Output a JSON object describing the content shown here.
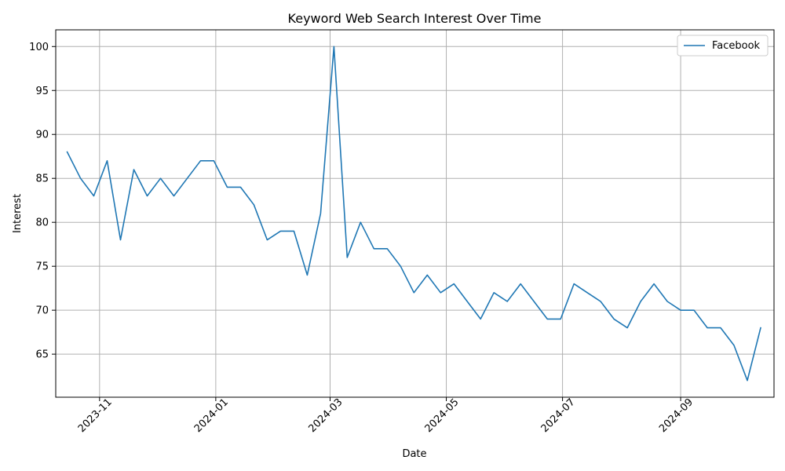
{
  "chart_data": {
    "type": "line",
    "title": "Keyword Web Search Interest Over Time",
    "xlabel": "Date",
    "ylabel": "Interest",
    "x_type": "date",
    "xlim": [
      "2023-10-09",
      "2024-10-20"
    ],
    "ylim": [
      60.1,
      101.9
    ],
    "x_ticks": [
      "2023-11-01",
      "2024-01-01",
      "2024-03-01",
      "2024-05-01",
      "2024-07-01",
      "2024-09-01"
    ],
    "x_tick_labels": [
      "2023-11",
      "2024-01",
      "2024-03",
      "2024-05",
      "2024-07",
      "2024-09"
    ],
    "y_ticks": [
      65,
      70,
      75,
      80,
      85,
      90,
      95,
      100
    ],
    "y_tick_labels": [
      "65",
      "70",
      "75",
      "80",
      "85",
      "90",
      "95",
      "100"
    ],
    "grid": true,
    "legend_position": "top-right",
    "series_color": "#1f77b4",
    "series": [
      {
        "name": "Facebook",
        "x": [
          "2023-10-15",
          "2023-10-22",
          "2023-10-29",
          "2023-11-05",
          "2023-11-12",
          "2023-11-19",
          "2023-11-26",
          "2023-12-03",
          "2023-12-10",
          "2023-12-17",
          "2023-12-24",
          "2023-12-31",
          "2024-01-07",
          "2024-01-14",
          "2024-01-21",
          "2024-01-28",
          "2024-02-04",
          "2024-02-11",
          "2024-02-18",
          "2024-02-25",
          "2024-03-03",
          "2024-03-10",
          "2024-03-17",
          "2024-03-24",
          "2024-03-31",
          "2024-04-07",
          "2024-04-14",
          "2024-04-21",
          "2024-04-28",
          "2024-05-05",
          "2024-05-12",
          "2024-05-19",
          "2024-05-26",
          "2024-06-02",
          "2024-06-09",
          "2024-06-16",
          "2024-06-23",
          "2024-06-30",
          "2024-07-07",
          "2024-07-14",
          "2024-07-21",
          "2024-07-28",
          "2024-08-04",
          "2024-08-11",
          "2024-08-18",
          "2024-08-25",
          "2024-09-01",
          "2024-09-08",
          "2024-09-15",
          "2024-09-22",
          "2024-09-29",
          "2024-10-06",
          "2024-10-13"
        ],
        "values": [
          88,
          85,
          83,
          87,
          78,
          86,
          83,
          85,
          83,
          85,
          87,
          87,
          84,
          84,
          82,
          78,
          79,
          79,
          74,
          81,
          100,
          76,
          80,
          77,
          77,
          75,
          72,
          74,
          72,
          73,
          71,
          69,
          72,
          71,
          73,
          71,
          69,
          69,
          73,
          72,
          71,
          69,
          68,
          71,
          73,
          71,
          70,
          70,
          68,
          68,
          66,
          62,
          68
        ]
      }
    ]
  }
}
